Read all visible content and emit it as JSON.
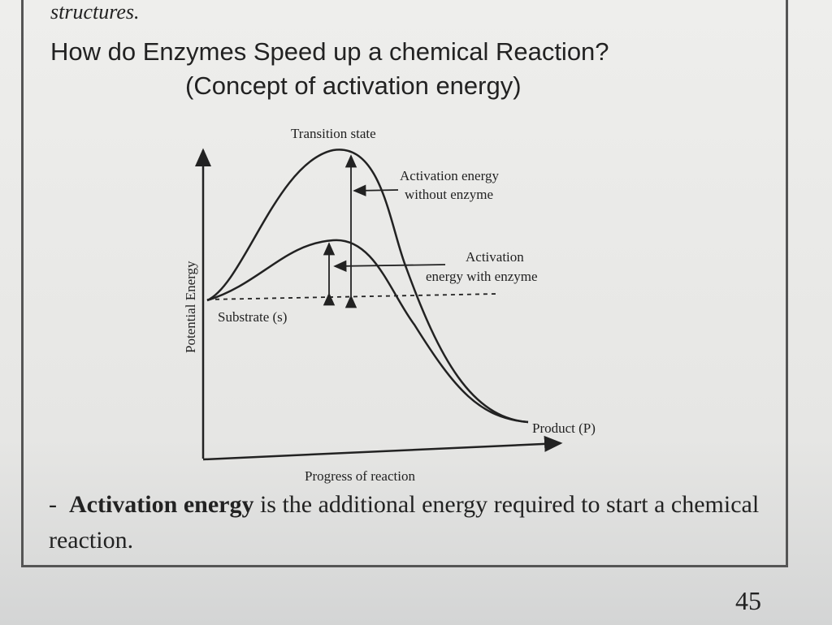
{
  "header": {
    "top_text": "structures.",
    "title": "How do Enzymes Speed up a chemical Reaction?",
    "subtitle": "(Concept of activation energy)"
  },
  "diagram": {
    "transition_state": "Transition state",
    "activation_without_enzyme": [
      "Activation energy",
      "without enzyme"
    ],
    "activation_with_enzyme": [
      "Activation",
      "energy with enzyme"
    ],
    "y_axis_label": "Potential Energy",
    "substrate": "Substrate (s)",
    "product": "Product (P)",
    "x_axis_label": "Progress of reaction"
  },
  "body": {
    "bullet_marker": "-",
    "bullet_term": "Activation energy",
    "bullet_text": " is the additional energy required to start a chemical reaction."
  },
  "page_number": "45"
}
